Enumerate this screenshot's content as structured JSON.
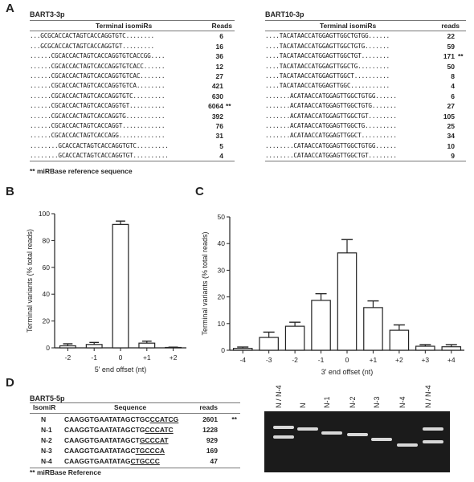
{
  "panels": {
    "a": "A",
    "b": "B",
    "c": "C",
    "d": "D"
  },
  "table_a1": {
    "name": "BART3-3p",
    "col_seq": "Terminal isomiRs",
    "col_reads": "Reads",
    "rows": [
      {
        "seq": "...GCGCACCACTAGTCACCAGGTGTC........",
        "reads": "6",
        "mark": ""
      },
      {
        "seq": "...GCGCACCACTAGTCACCAGGTGT.........",
        "reads": "16",
        "mark": ""
      },
      {
        "seq": "......CGCACCACTAGTCACCAGGTGTCACCGG....",
        "reads": "36",
        "mark": ""
      },
      {
        "seq": "......CGCACCACTAGTCACCAGGTGTCACC......",
        "reads": "12",
        "mark": ""
      },
      {
        "seq": "......CGCACCACTAGTCACCAGGTGTCAC.......",
        "reads": "27",
        "mark": ""
      },
      {
        "seq": "......CGCACCACTAGTCACCAGGTGTCA........",
        "reads": "421",
        "mark": ""
      },
      {
        "seq": "......CGCACCACTAGTCACCAGGTGTC.........",
        "reads": "630",
        "mark": ""
      },
      {
        "seq": "......CGCACCACTAGTCACCAGGTGT..........",
        "reads": "6064",
        "mark": "**"
      },
      {
        "seq": "......CGCACCACTAGTCACCAGGTG...........",
        "reads": "392",
        "mark": ""
      },
      {
        "seq": "......CGCACCACTAGTCACCAGGT............",
        "reads": "76",
        "mark": ""
      },
      {
        "seq": "......CGCACCACTAGTCACCAGG.............",
        "reads": "31",
        "mark": ""
      },
      {
        "seq": "........GCACCACTAGTCACCAGGTGTC.........",
        "reads": "5",
        "mark": ""
      },
      {
        "seq": "........GCACCACTAGTCACCAGGTGT..........",
        "reads": "4",
        "mark": ""
      }
    ],
    "footnote": "** miRBase reference sequence"
  },
  "table_a2": {
    "name": "BART10-3p",
    "col_seq": "Terminal isomiRs",
    "col_reads": "reads",
    "rows": [
      {
        "seq": "....TACATAACCATGGAGTTGGCTGTGG......",
        "reads": "22",
        "mark": ""
      },
      {
        "seq": "....TACATAACCATGGAGTTGGCTGTG.......",
        "reads": "59",
        "mark": ""
      },
      {
        "seq": "....TACATAACCATGGAGTTGGCTGT........",
        "reads": "171",
        "mark": "**"
      },
      {
        "seq": "....TACATAACCATGGAGTTGGCTG.........",
        "reads": "50",
        "mark": ""
      },
      {
        "seq": "....TACATAACCATGGAGTTGGCT..........",
        "reads": "8",
        "mark": ""
      },
      {
        "seq": "....TACATAACCATGGAGTTGGC...........",
        "reads": "4",
        "mark": ""
      },
      {
        "seq": ".......ACATAACCATGGAGTTGGCTGTGG......",
        "reads": "6",
        "mark": ""
      },
      {
        "seq": ".......ACATAACCATGGAGTTGGCTGTG.......",
        "reads": "27",
        "mark": ""
      },
      {
        "seq": ".......ACATAACCATGGAGTTGGCTGT........",
        "reads": "105",
        "mark": ""
      },
      {
        "seq": ".......ACATAACCATGGAGTTGGCTG.........",
        "reads": "25",
        "mark": ""
      },
      {
        "seq": ".......ACATAACCATGGAGTTGGCT..........",
        "reads": "34",
        "mark": ""
      },
      {
        "seq": "........CATAACCATGGAGTTGGCTGTGG......",
        "reads": "10",
        "mark": ""
      },
      {
        "seq": "........CATAACCATGGAGTTGGCTGT........",
        "reads": "9",
        "mark": ""
      }
    ]
  },
  "chart_data": [
    {
      "type": "bar",
      "panel": "B",
      "categories": [
        "-2",
        "-1",
        "0",
        "+1",
        "+2"
      ],
      "values": [
        1.5,
        2.5,
        92,
        3.5,
        0.3
      ],
      "errors": [
        1.5,
        1.5,
        2.5,
        1.5,
        0.2
      ],
      "xlabel": "5' end offset (nt)",
      "ylabel": "Terminal variants (% total reads)",
      "ylim": [
        0,
        100
      ],
      "yticks": [
        "0",
        "20",
        "40",
        "60",
        "80",
        "100"
      ],
      "color": "#ffffff"
    },
    {
      "type": "bar",
      "panel": "C",
      "categories": [
        "-4",
        "-3",
        "-2",
        "-1",
        "0",
        "+1",
        "+2",
        "+3",
        "+4"
      ],
      "values": [
        0.7,
        4.8,
        9.0,
        18.7,
        36.5,
        16.0,
        7.5,
        1.5,
        1.3
      ],
      "errors": [
        0.5,
        2.0,
        1.5,
        2.5,
        5.0,
        2.5,
        2.0,
        0.6,
        0.8
      ],
      "xlabel": "3' end offset (nt)",
      "ylabel": "Terminal variants (% total reads)",
      "ylim": [
        0,
        50
      ],
      "yticks": [
        "0",
        "10",
        "20",
        "30",
        "40",
        "50"
      ],
      "color": "#ffffff"
    }
  ],
  "table_d": {
    "name": "BART5-5p",
    "col_isomir": "IsomiR",
    "col_seq": "Sequence",
    "col_reads": "reads",
    "rows": [
      {
        "id": "N",
        "seq_a": "CAAGGTGAATATAGCTGC",
        "seq_u": "CCATCG",
        "reads": "2601",
        "mark": "**"
      },
      {
        "id": "N-1",
        "seq_a": "CAAGGTGAATATAGCTG",
        "seq_u": "CCCATC",
        "reads": "1228",
        "mark": ""
      },
      {
        "id": "N-2",
        "seq_a": "CAAGGTGAATATAGCT",
        "seq_u": "GCCCAT",
        "reads": "929",
        "mark": ""
      },
      {
        "id": "N-3",
        "seq_a": "CAAGGTGAATATAGC",
        "seq_u": "TGCCCA",
        "reads": "169",
        "mark": ""
      },
      {
        "id": "N-4",
        "seq_a": "CAAGGTGAATATAG",
        "seq_u": "CTGCCC",
        "reads": "47",
        "mark": ""
      }
    ],
    "footnote": "** miRBase Reference"
  },
  "gel": {
    "lanes": [
      "N / N-4",
      "N",
      "N-1",
      "N-2",
      "N-3",
      "N-4",
      "N / N-4"
    ]
  }
}
